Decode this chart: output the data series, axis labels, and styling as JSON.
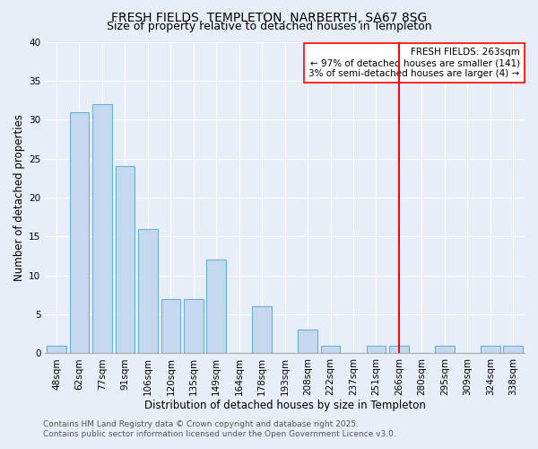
{
  "title": "FRESH FIELDS, TEMPLETON, NARBERTH, SA67 8SG",
  "subtitle": "Size of property relative to detached houses in Templeton",
  "xlabel": "Distribution of detached houses by size in Templeton",
  "ylabel": "Number of detached properties",
  "bar_labels": [
    "48sqm",
    "62sqm",
    "77sqm",
    "91sqm",
    "106sqm",
    "120sqm",
    "135sqm",
    "149sqm",
    "164sqm",
    "178sqm",
    "193sqm",
    "208sqm",
    "222sqm",
    "237sqm",
    "251sqm",
    "266sqm",
    "280sqm",
    "295sqm",
    "309sqm",
    "324sqm",
    "338sqm"
  ],
  "bar_values": [
    1,
    31,
    32,
    24,
    16,
    7,
    7,
    12,
    0,
    6,
    0,
    3,
    1,
    0,
    1,
    1,
    0,
    1,
    0,
    1,
    1
  ],
  "bar_color": "#c5d8f0",
  "bar_edge_color": "#6baed6",
  "ylim": [
    0,
    40
  ],
  "yticks": [
    0,
    5,
    10,
    15,
    20,
    25,
    30,
    35,
    40
  ],
  "vline_x_index": 15,
  "vline_color": "red",
  "annotation_title": "FRESH FIELDS: 263sqm",
  "annotation_line1": "← 97% of detached houses are smaller (141)",
  "annotation_line2": "3% of semi-detached houses are larger (4) →",
  "annotation_box_color": "white",
  "annotation_box_edge_color": "red",
  "footer1": "Contains HM Land Registry data © Crown copyright and database right 2025.",
  "footer2": "Contains public sector information licensed under the Open Government Licence v3.0.",
  "background_color": "#e8eef8",
  "grid_color": "#ffffff",
  "title_fontsize": 10,
  "subtitle_fontsize": 9,
  "label_fontsize": 8.5,
  "tick_fontsize": 7.5,
  "annotation_fontsize": 7.5,
  "footer_fontsize": 6.5
}
